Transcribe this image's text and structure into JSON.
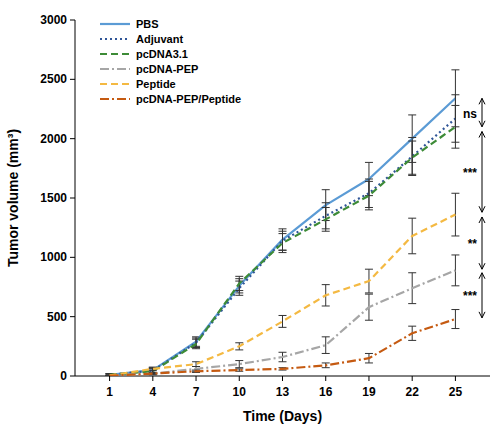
{
  "chart_data": {
    "type": "line",
    "x_label": "Time (Days)",
    "y_label": "Tumor volume (mm³)",
    "categories": [
      "1",
      "4",
      "7",
      "10",
      "13",
      "16",
      "19",
      "22",
      "25"
    ],
    "ylim": [
      0,
      3000
    ],
    "yticks": [
      0,
      500,
      1000,
      1500,
      2000,
      2500,
      3000
    ],
    "grid": false,
    "legend": "top-left",
    "series": [
      {
        "name": "PBS",
        "color": "#5b9bd5",
        "line_style": "solid",
        "values": [
          10,
          50,
          290,
          760,
          1150,
          1440,
          1660,
          2000,
          2340
        ],
        "errors": [
          10,
          20,
          40,
          60,
          90,
          130,
          140,
          200,
          240
        ]
      },
      {
        "name": "Adjuvant",
        "color": "#2f5597",
        "line_style": "dotted",
        "values": [
          10,
          45,
          280,
          740,
          1140,
          1350,
          1540,
          1850,
          2170
        ],
        "errors": [
          10,
          20,
          40,
          60,
          80,
          110,
          120,
          160,
          200
        ]
      },
      {
        "name": "pcDNA3.1",
        "color": "#3d8b37",
        "line_style": "dashed",
        "values": [
          10,
          40,
          270,
          780,
          1120,
          1320,
          1520,
          1840,
          2100
        ],
        "errors": [
          10,
          20,
          40,
          60,
          80,
          100,
          120,
          140,
          180
        ]
      },
      {
        "name": "pcDNA-PEP",
        "color": "#a6a6a6",
        "line_style": "dashdot",
        "values": [
          5,
          20,
          60,
          100,
          160,
          260,
          580,
          740,
          890
        ],
        "errors": [
          5,
          10,
          20,
          30,
          40,
          70,
          110,
          130,
          130
        ]
      },
      {
        "name": "Peptide",
        "color": "#f4b942",
        "line_style": "dashed",
        "values": [
          5,
          60,
          100,
          250,
          460,
          680,
          800,
          1180,
          1360
        ],
        "errors": [
          5,
          15,
          20,
          30,
          50,
          90,
          100,
          150,
          180
        ]
      },
      {
        "name": "pcDNA-PEP/Peptide",
        "color": "#c55a11",
        "line_style": "dashdot",
        "values": [
          2,
          20,
          40,
          50,
          60,
          90,
          150,
          360,
          480
        ],
        "errors": [
          2,
          5,
          10,
          10,
          10,
          20,
          40,
          60,
          80
        ]
      }
    ],
    "annotations": [
      {
        "text": "ns",
        "from": 2340,
        "to": 2100
      },
      {
        "text": "***",
        "from": 2060,
        "to": 1380
      },
      {
        "text": "**",
        "from": 1340,
        "to": 900
      },
      {
        "text": "***",
        "from": 870,
        "to": 490
      }
    ]
  }
}
